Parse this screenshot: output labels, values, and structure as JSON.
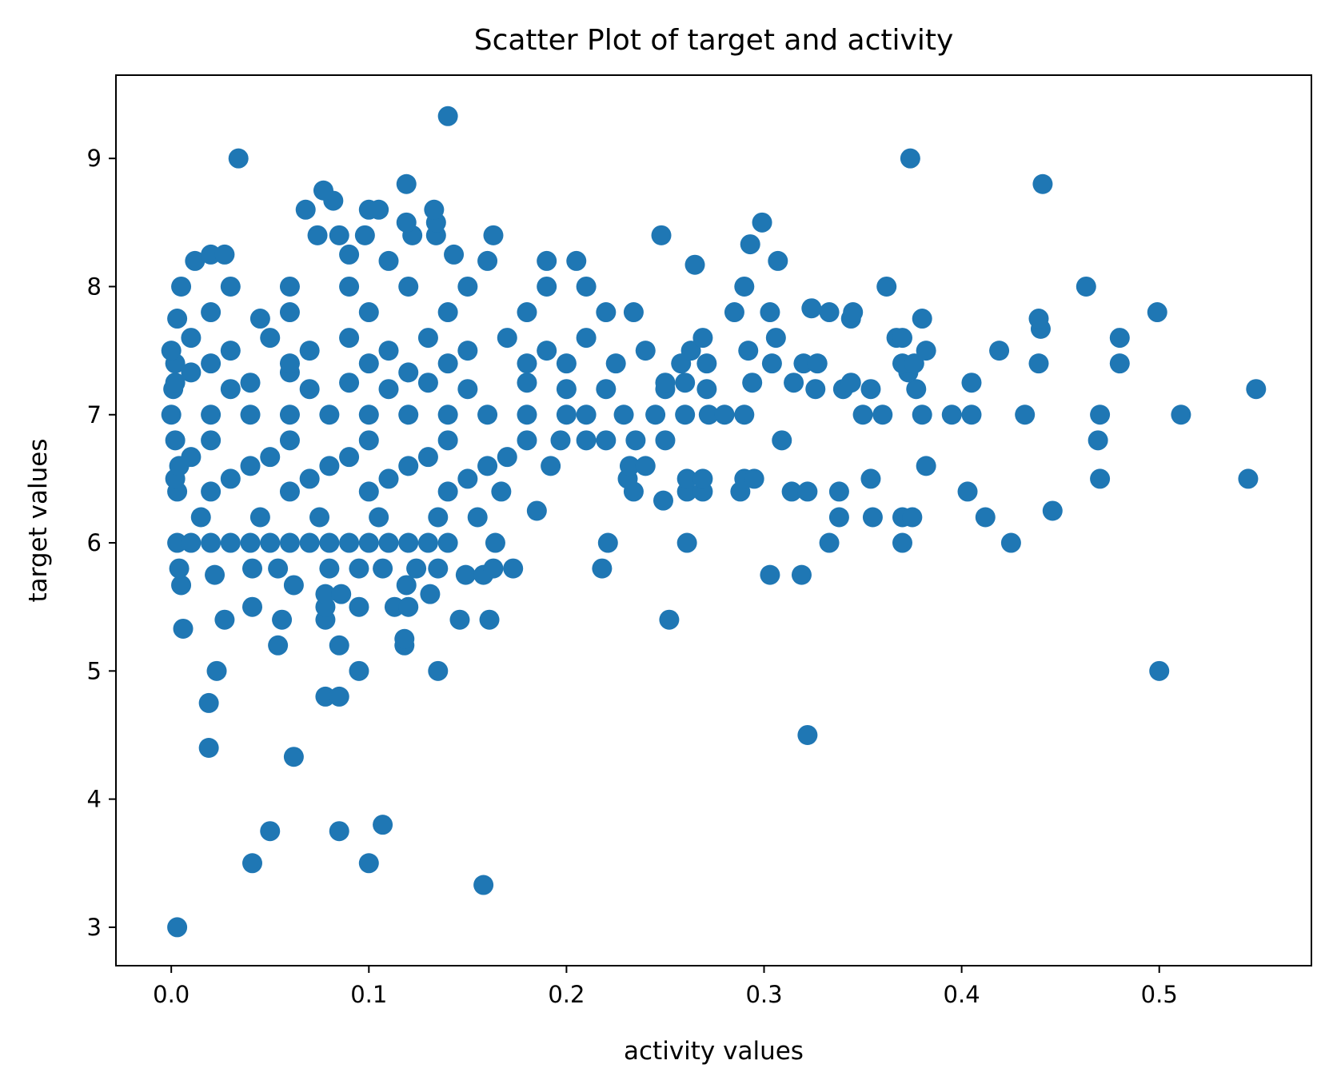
{
  "chart_data": {
    "type": "scatter",
    "title": "Scatter Plot of target and activity",
    "xlabel": "activity values",
    "ylabel": "target values",
    "xlim": [
      -0.028,
      0.577
    ],
    "ylim": [
      2.7,
      9.65
    ],
    "x_ticks": [
      0.0,
      0.1,
      0.2,
      0.3,
      0.4,
      0.5
    ],
    "x_tick_labels": [
      "0.0",
      "0.1",
      "0.2",
      "0.3",
      "0.4",
      "0.5"
    ],
    "y_ticks": [
      3,
      4,
      5,
      6,
      7,
      8,
      9
    ],
    "y_tick_labels": [
      "3",
      "4",
      "5",
      "6",
      "7",
      "8",
      "9"
    ],
    "grid": false,
    "color": "#1f77b4",
    "series": [
      {
        "points": [
          [
            0.003,
            3.0
          ],
          [
            0.041,
            3.5
          ],
          [
            0.1,
            3.5
          ],
          [
            0.158,
            3.33
          ],
          [
            0.05,
            3.75
          ],
          [
            0.085,
            3.75
          ],
          [
            0.107,
            3.8
          ],
          [
            0.019,
            4.4
          ],
          [
            0.062,
            4.33
          ],
          [
            0.322,
            4.5
          ],
          [
            0.019,
            4.75
          ],
          [
            0.078,
            4.8
          ],
          [
            0.085,
            4.8
          ],
          [
            0.023,
            5.0
          ],
          [
            0.095,
            5.0
          ],
          [
            0.135,
            5.0
          ],
          [
            0.5,
            5.0
          ],
          [
            0.054,
            5.2
          ],
          [
            0.085,
            5.2
          ],
          [
            0.118,
            5.2
          ],
          [
            0.118,
            5.25
          ],
          [
            0.006,
            5.33
          ],
          [
            0.027,
            5.4
          ],
          [
            0.056,
            5.4
          ],
          [
            0.078,
            5.4
          ],
          [
            0.146,
            5.4
          ],
          [
            0.161,
            5.4
          ],
          [
            0.252,
            5.4
          ],
          [
            0.041,
            5.5
          ],
          [
            0.078,
            5.5
          ],
          [
            0.095,
            5.5
          ],
          [
            0.113,
            5.5
          ],
          [
            0.12,
            5.5
          ],
          [
            0.078,
            5.6
          ],
          [
            0.086,
            5.6
          ],
          [
            0.131,
            5.6
          ],
          [
            0.005,
            5.67
          ],
          [
            0.062,
            5.67
          ],
          [
            0.119,
            5.67
          ],
          [
            0.149,
            5.75
          ],
          [
            0.158,
            5.75
          ],
          [
            0.022,
            5.75
          ],
          [
            0.303,
            5.75
          ],
          [
            0.319,
            5.75
          ],
          [
            0.004,
            5.8
          ],
          [
            0.041,
            5.8
          ],
          [
            0.054,
            5.8
          ],
          [
            0.08,
            5.8
          ],
          [
            0.095,
            5.8
          ],
          [
            0.107,
            5.8
          ],
          [
            0.124,
            5.8
          ],
          [
            0.135,
            5.8
          ],
          [
            0.163,
            5.8
          ],
          [
            0.173,
            5.8
          ],
          [
            0.218,
            5.8
          ],
          [
            0.003,
            6.0
          ],
          [
            0.01,
            6.0
          ],
          [
            0.02,
            6.0
          ],
          [
            0.03,
            6.0
          ],
          [
            0.04,
            6.0
          ],
          [
            0.05,
            6.0
          ],
          [
            0.06,
            6.0
          ],
          [
            0.07,
            6.0
          ],
          [
            0.08,
            6.0
          ],
          [
            0.09,
            6.0
          ],
          [
            0.1,
            6.0
          ],
          [
            0.11,
            6.0
          ],
          [
            0.12,
            6.0
          ],
          [
            0.13,
            6.0
          ],
          [
            0.14,
            6.0
          ],
          [
            0.164,
            6.0
          ],
          [
            0.221,
            6.0
          ],
          [
            0.261,
            6.0
          ],
          [
            0.333,
            6.0
          ],
          [
            0.37,
            6.0
          ],
          [
            0.425,
            6.0
          ],
          [
            0.015,
            6.2
          ],
          [
            0.045,
            6.2
          ],
          [
            0.075,
            6.2
          ],
          [
            0.105,
            6.2
          ],
          [
            0.135,
            6.2
          ],
          [
            0.155,
            6.2
          ],
          [
            0.338,
            6.2
          ],
          [
            0.355,
            6.2
          ],
          [
            0.37,
            6.2
          ],
          [
            0.375,
            6.2
          ],
          [
            0.412,
            6.2
          ],
          [
            0.185,
            6.25
          ],
          [
            0.446,
            6.25
          ],
          [
            0.249,
            6.33
          ],
          [
            0.003,
            6.4
          ],
          [
            0.02,
            6.4
          ],
          [
            0.06,
            6.4
          ],
          [
            0.1,
            6.4
          ],
          [
            0.14,
            6.4
          ],
          [
            0.167,
            6.4
          ],
          [
            0.234,
            6.4
          ],
          [
            0.261,
            6.4
          ],
          [
            0.269,
            6.4
          ],
          [
            0.288,
            6.4
          ],
          [
            0.314,
            6.4
          ],
          [
            0.322,
            6.4
          ],
          [
            0.338,
            6.4
          ],
          [
            0.403,
            6.4
          ],
          [
            0.002,
            6.5
          ],
          [
            0.03,
            6.5
          ],
          [
            0.07,
            6.5
          ],
          [
            0.11,
            6.5
          ],
          [
            0.15,
            6.5
          ],
          [
            0.231,
            6.5
          ],
          [
            0.261,
            6.5
          ],
          [
            0.269,
            6.5
          ],
          [
            0.29,
            6.5
          ],
          [
            0.295,
            6.5
          ],
          [
            0.354,
            6.5
          ],
          [
            0.47,
            6.5
          ],
          [
            0.545,
            6.5
          ],
          [
            0.004,
            6.6
          ],
          [
            0.04,
            6.6
          ],
          [
            0.08,
            6.6
          ],
          [
            0.12,
            6.6
          ],
          [
            0.16,
            6.6
          ],
          [
            0.192,
            6.6
          ],
          [
            0.232,
            6.6
          ],
          [
            0.24,
            6.6
          ],
          [
            0.382,
            6.6
          ],
          [
            0.01,
            6.67
          ],
          [
            0.05,
            6.67
          ],
          [
            0.09,
            6.67
          ],
          [
            0.13,
            6.67
          ],
          [
            0.17,
            6.67
          ],
          [
            0.002,
            6.8
          ],
          [
            0.02,
            6.8
          ],
          [
            0.06,
            6.8
          ],
          [
            0.1,
            6.8
          ],
          [
            0.14,
            6.8
          ],
          [
            0.18,
            6.8
          ],
          [
            0.197,
            6.8
          ],
          [
            0.21,
            6.8
          ],
          [
            0.22,
            6.8
          ],
          [
            0.235,
            6.8
          ],
          [
            0.25,
            6.8
          ],
          [
            0.309,
            6.8
          ],
          [
            0.469,
            6.8
          ],
          [
            0.0,
            7.0
          ],
          [
            0.02,
            7.0
          ],
          [
            0.04,
            7.0
          ],
          [
            0.06,
            7.0
          ],
          [
            0.08,
            7.0
          ],
          [
            0.1,
            7.0
          ],
          [
            0.12,
            7.0
          ],
          [
            0.14,
            7.0
          ],
          [
            0.16,
            7.0
          ],
          [
            0.18,
            7.0
          ],
          [
            0.2,
            7.0
          ],
          [
            0.21,
            7.0
          ],
          [
            0.229,
            7.0
          ],
          [
            0.245,
            7.0
          ],
          [
            0.26,
            7.0
          ],
          [
            0.272,
            7.0
          ],
          [
            0.28,
            7.0
          ],
          [
            0.29,
            7.0
          ],
          [
            0.35,
            7.0
          ],
          [
            0.36,
            7.0
          ],
          [
            0.38,
            7.0
          ],
          [
            0.395,
            7.0
          ],
          [
            0.405,
            7.0
          ],
          [
            0.432,
            7.0
          ],
          [
            0.47,
            7.0
          ],
          [
            0.511,
            7.0
          ],
          [
            0.001,
            7.2
          ],
          [
            0.03,
            7.2
          ],
          [
            0.07,
            7.2
          ],
          [
            0.11,
            7.2
          ],
          [
            0.15,
            7.2
          ],
          [
            0.2,
            7.2
          ],
          [
            0.22,
            7.2
          ],
          [
            0.25,
            7.2
          ],
          [
            0.271,
            7.2
          ],
          [
            0.326,
            7.2
          ],
          [
            0.34,
            7.2
          ],
          [
            0.354,
            7.2
          ],
          [
            0.377,
            7.2
          ],
          [
            0.549,
            7.2
          ],
          [
            0.002,
            7.25
          ],
          [
            0.04,
            7.25
          ],
          [
            0.09,
            7.25
          ],
          [
            0.13,
            7.25
          ],
          [
            0.18,
            7.25
          ],
          [
            0.25,
            7.25
          ],
          [
            0.26,
            7.25
          ],
          [
            0.294,
            7.25
          ],
          [
            0.315,
            7.25
          ],
          [
            0.344,
            7.25
          ],
          [
            0.405,
            7.25
          ],
          [
            0.01,
            7.33
          ],
          [
            0.06,
            7.33
          ],
          [
            0.12,
            7.33
          ],
          [
            0.373,
            7.33
          ],
          [
            0.002,
            7.4
          ],
          [
            0.02,
            7.4
          ],
          [
            0.06,
            7.4
          ],
          [
            0.1,
            7.4
          ],
          [
            0.14,
            7.4
          ],
          [
            0.18,
            7.4
          ],
          [
            0.2,
            7.4
          ],
          [
            0.225,
            7.4
          ],
          [
            0.258,
            7.4
          ],
          [
            0.271,
            7.4
          ],
          [
            0.304,
            7.4
          ],
          [
            0.32,
            7.4
          ],
          [
            0.327,
            7.4
          ],
          [
            0.37,
            7.4
          ],
          [
            0.376,
            7.4
          ],
          [
            0.439,
            7.4
          ],
          [
            0.48,
            7.4
          ],
          [
            0.0,
            7.5
          ],
          [
            0.03,
            7.5
          ],
          [
            0.07,
            7.5
          ],
          [
            0.11,
            7.5
          ],
          [
            0.15,
            7.5
          ],
          [
            0.19,
            7.5
          ],
          [
            0.24,
            7.5
          ],
          [
            0.263,
            7.5
          ],
          [
            0.292,
            7.5
          ],
          [
            0.382,
            7.5
          ],
          [
            0.419,
            7.5
          ],
          [
            0.01,
            7.6
          ],
          [
            0.05,
            7.6
          ],
          [
            0.09,
            7.6
          ],
          [
            0.13,
            7.6
          ],
          [
            0.17,
            7.6
          ],
          [
            0.21,
            7.6
          ],
          [
            0.269,
            7.6
          ],
          [
            0.306,
            7.6
          ],
          [
            0.367,
            7.6
          ],
          [
            0.37,
            7.6
          ],
          [
            0.48,
            7.6
          ],
          [
            0.44,
            7.67
          ],
          [
            0.003,
            7.75
          ],
          [
            0.045,
            7.75
          ],
          [
            0.344,
            7.75
          ],
          [
            0.38,
            7.75
          ],
          [
            0.439,
            7.75
          ],
          [
            0.02,
            7.8
          ],
          [
            0.06,
            7.8
          ],
          [
            0.1,
            7.8
          ],
          [
            0.14,
            7.8
          ],
          [
            0.18,
            7.8
          ],
          [
            0.22,
            7.8
          ],
          [
            0.234,
            7.8
          ],
          [
            0.285,
            7.8
          ],
          [
            0.303,
            7.8
          ],
          [
            0.333,
            7.8
          ],
          [
            0.345,
            7.8
          ],
          [
            0.499,
            7.8
          ],
          [
            0.324,
            7.83
          ],
          [
            0.005,
            8.0
          ],
          [
            0.03,
            8.0
          ],
          [
            0.06,
            8.0
          ],
          [
            0.09,
            8.0
          ],
          [
            0.12,
            8.0
          ],
          [
            0.15,
            8.0
          ],
          [
            0.19,
            8.0
          ],
          [
            0.21,
            8.0
          ],
          [
            0.29,
            8.0
          ],
          [
            0.362,
            8.0
          ],
          [
            0.463,
            8.0
          ],
          [
            0.265,
            8.17
          ],
          [
            0.012,
            8.2
          ],
          [
            0.11,
            8.2
          ],
          [
            0.16,
            8.2
          ],
          [
            0.19,
            8.2
          ],
          [
            0.205,
            8.2
          ],
          [
            0.307,
            8.2
          ],
          [
            0.02,
            8.25
          ],
          [
            0.027,
            8.25
          ],
          [
            0.09,
            8.25
          ],
          [
            0.143,
            8.25
          ],
          [
            0.293,
            8.33
          ],
          [
            0.074,
            8.4
          ],
          [
            0.085,
            8.4
          ],
          [
            0.098,
            8.4
          ],
          [
            0.122,
            8.4
          ],
          [
            0.134,
            8.4
          ],
          [
            0.163,
            8.4
          ],
          [
            0.248,
            8.4
          ],
          [
            0.119,
            8.5
          ],
          [
            0.134,
            8.5
          ],
          [
            0.299,
            8.5
          ],
          [
            0.068,
            8.6
          ],
          [
            0.1,
            8.6
          ],
          [
            0.105,
            8.6
          ],
          [
            0.133,
            8.6
          ],
          [
            0.082,
            8.67
          ],
          [
            0.077,
            8.75
          ],
          [
            0.119,
            8.8
          ],
          [
            0.441,
            8.8
          ],
          [
            0.034,
            9.0
          ],
          [
            0.374,
            9.0
          ],
          [
            0.14,
            9.33
          ]
        ]
      }
    ]
  }
}
